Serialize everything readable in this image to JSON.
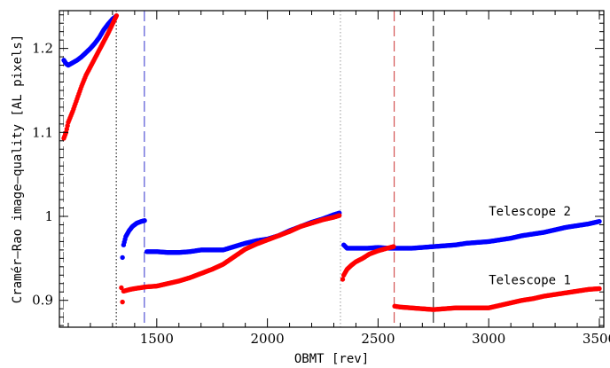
{
  "chart_data": {
    "type": "scatter",
    "xlabel": "OBMT [rev]",
    "ylabel": "Cramér–Rao image–quality [AL pixels]",
    "xlim": [
      1060,
      3520
    ],
    "ylim": [
      0.868,
      1.245
    ],
    "x_ticks": [
      1500,
      2000,
      2500,
      3000,
      3500
    ],
    "x_tick_labels": [
      "1500",
      "2000",
      "2500",
      "3000",
      "3500"
    ],
    "y_ticks": [
      0.9,
      1.0,
      1.1,
      1.2
    ],
    "y_tick_labels": [
      "0.9",
      "1",
      "1.1",
      "1.2"
    ],
    "grid": false,
    "vlines": [
      {
        "x": 1078,
        "color": "#888888",
        "style": "dashed"
      },
      {
        "x": 1317,
        "color": "#000000",
        "style": "dotted"
      },
      {
        "x": 1444,
        "color": "#3333cc",
        "style": "dashed"
      },
      {
        "x": 2330,
        "color": "#999999",
        "style": "dotted"
      },
      {
        "x": 2573,
        "color": "#cc3333",
        "style": "dashed"
      },
      {
        "x": 2750,
        "color": "#000000",
        "style": "dashed"
      }
    ],
    "annotations": [
      {
        "text": "Telescope 2",
        "x": 3000,
        "y": 1.001
      },
      {
        "text": "Telescope 1",
        "x": 3000,
        "y": 0.919
      }
    ],
    "series": [
      {
        "color": "#0000ff",
        "segments": [
          [
            [
              1080,
              1.186
            ],
            [
              1090,
              1.182
            ],
            [
              1100,
              1.18
            ],
            [
              1120,
              1.183
            ],
            [
              1140,
              1.186
            ],
            [
              1160,
              1.19
            ],
            [
              1180,
              1.195
            ],
            [
              1200,
              1.2
            ],
            [
              1220,
              1.206
            ],
            [
              1240,
              1.213
            ],
            [
              1260,
              1.222
            ],
            [
              1280,
              1.229
            ],
            [
              1300,
              1.235
            ],
            [
              1315,
              1.238
            ]
          ],
          [
            [
              1345,
              0.951
            ],
            [
              1350,
              0.966
            ],
            [
              1360,
              0.976
            ],
            [
              1375,
              0.983
            ],
            [
              1390,
              0.988
            ],
            [
              1410,
              0.992
            ],
            [
              1430,
              0.994
            ],
            [
              1445,
              0.995
            ]
          ],
          [
            [
              1455,
              0.958
            ],
            [
              1500,
              0.958
            ],
            [
              1550,
              0.957
            ],
            [
              1600,
              0.957
            ],
            [
              1650,
              0.958
            ],
            [
              1700,
              0.96
            ],
            [
              1750,
              0.96
            ],
            [
              1800,
              0.96
            ],
            [
              1850,
              0.964
            ],
            [
              1900,
              0.968
            ],
            [
              1950,
              0.971
            ],
            [
              2000,
              0.973
            ],
            [
              2050,
              0.977
            ],
            [
              2100,
              0.983
            ],
            [
              2150,
              0.988
            ],
            [
              2200,
              0.993
            ],
            [
              2250,
              0.997
            ],
            [
              2300,
              1.002
            ],
            [
              2325,
              1.004
            ]
          ],
          [
            [
              2345,
              0.966
            ],
            [
              2360,
              0.962
            ],
            [
              2400,
              0.962
            ],
            [
              2450,
              0.962
            ],
            [
              2500,
              0.963
            ],
            [
              2550,
              0.962
            ],
            [
              2600,
              0.962
            ],
            [
              2650,
              0.962
            ],
            [
              2700,
              0.963
            ],
            [
              2750,
              0.964
            ],
            [
              2800,
              0.965
            ],
            [
              2850,
              0.966
            ],
            [
              2900,
              0.968
            ],
            [
              2950,
              0.969
            ],
            [
              3000,
              0.97
            ],
            [
              3050,
              0.972
            ],
            [
              3100,
              0.974
            ],
            [
              3150,
              0.977
            ],
            [
              3200,
              0.979
            ],
            [
              3250,
              0.981
            ],
            [
              3300,
              0.984
            ],
            [
              3350,
              0.987
            ],
            [
              3400,
              0.989
            ],
            [
              3450,
              0.991
            ],
            [
              3500,
              0.994
            ]
          ]
        ]
      },
      {
        "color": "#ff0000",
        "segments": [
          [
            [
              1080,
              1.093
            ],
            [
              1090,
              1.1
            ],
            [
              1100,
              1.112
            ],
            [
              1120,
              1.125
            ],
            [
              1140,
              1.14
            ],
            [
              1160,
              1.155
            ],
            [
              1180,
              1.168
            ],
            [
              1200,
              1.178
            ],
            [
              1220,
              1.188
            ],
            [
              1240,
              1.198
            ],
            [
              1260,
              1.208
            ],
            [
              1280,
              1.218
            ],
            [
              1300,
              1.229
            ],
            [
              1318,
              1.239
            ]
          ],
          [
            [
              1340,
              0.915
            ],
            [
              1345,
              0.898
            ],
            [
              1350,
              0.911
            ],
            [
              1380,
              0.913
            ],
            [
              1400,
              0.914
            ],
            [
              1450,
              0.916
            ],
            [
              1500,
              0.917
            ],
            [
              1550,
              0.92
            ],
            [
              1600,
              0.923
            ],
            [
              1650,
              0.927
            ],
            [
              1700,
              0.932
            ],
            [
              1750,
              0.937
            ],
            [
              1800,
              0.943
            ],
            [
              1850,
              0.952
            ],
            [
              1900,
              0.961
            ],
            [
              1950,
              0.967
            ],
            [
              2000,
              0.972
            ],
            [
              2050,
              0.977
            ],
            [
              2100,
              0.982
            ],
            [
              2150,
              0.988
            ],
            [
              2200,
              0.992
            ],
            [
              2250,
              0.996
            ],
            [
              2300,
              0.999
            ],
            [
              2325,
              1.001
            ]
          ],
          [
            [
              2340,
              0.925
            ],
            [
              2345,
              0.93
            ],
            [
              2360,
              0.937
            ],
            [
              2380,
              0.942
            ],
            [
              2400,
              0.946
            ],
            [
              2430,
              0.95
            ],
            [
              2460,
              0.955
            ],
            [
              2500,
              0.959
            ],
            [
              2540,
              0.962
            ],
            [
              2570,
              0.964
            ]
          ],
          [
            [
              2575,
              0.893
            ],
            [
              2600,
              0.892
            ],
            [
              2650,
              0.891
            ],
            [
              2700,
              0.89
            ],
            [
              2750,
              0.889
            ],
            [
              2800,
              0.89
            ],
            [
              2850,
              0.891
            ],
            [
              2900,
              0.891
            ],
            [
              2950,
              0.891
            ],
            [
              3000,
              0.891
            ],
            [
              3050,
              0.894
            ],
            [
              3100,
              0.897
            ],
            [
              3150,
              0.9
            ],
            [
              3200,
              0.902
            ],
            [
              3250,
              0.905
            ],
            [
              3300,
              0.907
            ],
            [
              3350,
              0.909
            ],
            [
              3400,
              0.911
            ],
            [
              3450,
              0.913
            ],
            [
              3500,
              0.914
            ]
          ]
        ]
      }
    ]
  }
}
